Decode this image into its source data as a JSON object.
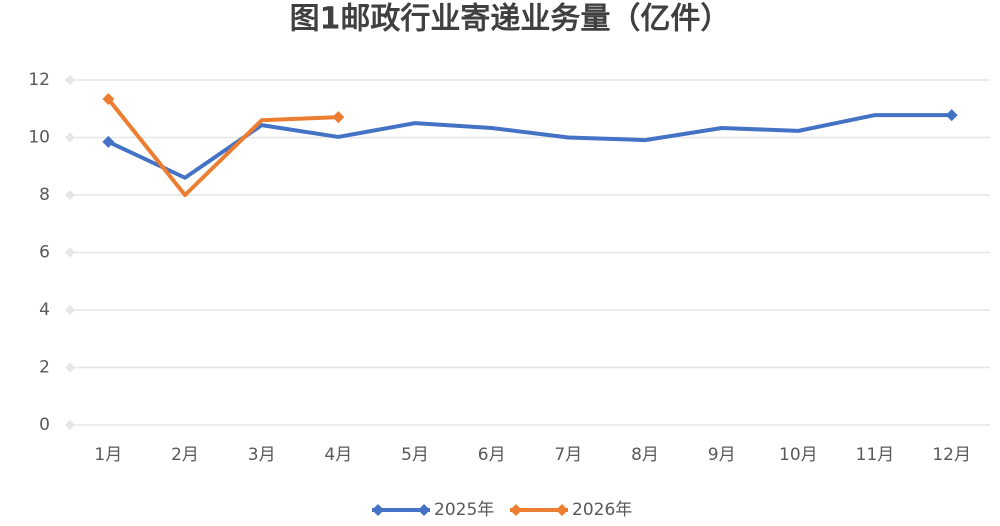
{
  "chart_data": {
    "type": "line",
    "title": "图1邮政行业寄递业务量（亿件）",
    "categories": [
      "1月",
      "2月",
      "3月",
      "4月",
      "5月",
      "6月",
      "7月",
      "8月",
      "9月",
      "10月",
      "11月",
      "12月"
    ],
    "series": [
      {
        "name": "2025年",
        "color": "#4472c4",
        "values": [
          9.85,
          8.6,
          10.43,
          10.02,
          10.5,
          10.33,
          10.0,
          9.91,
          10.33,
          10.23,
          10.78,
          10.78
        ]
      },
      {
        "name": "2026年",
        "color": "#ed7d31",
        "values": [
          11.34,
          8.0,
          10.6,
          10.71,
          null,
          null,
          null,
          null,
          null,
          null,
          null,
          null
        ]
      }
    ],
    "ylim": [
      0,
      12
    ],
    "yticks": [
      0,
      2,
      4,
      6,
      8,
      10,
      12
    ],
    "grid": true,
    "legend": "bottom"
  }
}
